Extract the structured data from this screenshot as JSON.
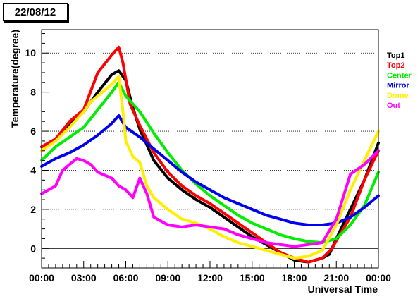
{
  "chart_data": {
    "type": "line",
    "title": "22/08/12",
    "xlabel": "Universal Time",
    "ylabel": "Temperature(degree)",
    "xlim": [
      0,
      24
    ],
    "ylim": [
      -1,
      11.2
    ],
    "x_ticks": [
      {
        "value": 0,
        "label": "00:00"
      },
      {
        "value": 3,
        "label": "03:00"
      },
      {
        "value": 6,
        "label": "06:00"
      },
      {
        "value": 9,
        "label": "09:00"
      },
      {
        "value": 12,
        "label": "12:00"
      },
      {
        "value": 15,
        "label": "15:00"
      },
      {
        "value": 18,
        "label": "18:00"
      },
      {
        "value": 21,
        "label": "21:00"
      },
      {
        "value": 24,
        "label": "00:00"
      }
    ],
    "y_ticks": [
      0,
      2,
      4,
      6,
      8,
      10
    ],
    "grid": "dotted horizontal at y ticks",
    "legend_position": "right",
    "series": [
      {
        "name": "Top1",
        "color": "#000000",
        "points": [
          [
            0,
            5.2
          ],
          [
            1,
            5.6
          ],
          [
            2,
            6.4
          ],
          [
            3,
            7.0
          ],
          [
            4,
            8.0
          ],
          [
            5,
            8.9
          ],
          [
            5.5,
            9.1
          ],
          [
            6,
            8.6
          ],
          [
            6.5,
            7.2
          ],
          [
            7,
            6.1
          ],
          [
            8,
            4.5
          ],
          [
            9,
            3.6
          ],
          [
            10,
            3.0
          ],
          [
            11,
            2.5
          ],
          [
            12,
            2.1
          ],
          [
            13,
            1.6
          ],
          [
            14,
            1.1
          ],
          [
            15,
            0.6
          ],
          [
            16,
            0.2
          ],
          [
            17,
            -0.2
          ],
          [
            18,
            -0.6
          ],
          [
            19,
            -0.7
          ],
          [
            20,
            -0.5
          ],
          [
            20.5,
            -0.3
          ],
          [
            21,
            0.5
          ],
          [
            22,
            2.0
          ],
          [
            23,
            3.5
          ],
          [
            24,
            5.4
          ]
        ]
      },
      {
        "name": "Top2",
        "color": "#ff0000",
        "points": [
          [
            0,
            5.2
          ],
          [
            1,
            5.6
          ],
          [
            2,
            6.5
          ],
          [
            3,
            7.1
          ],
          [
            4,
            9.0
          ],
          [
            5,
            9.9
          ],
          [
            5.5,
            10.3
          ],
          [
            5.8,
            9.5
          ],
          [
            6.3,
            7.4
          ],
          [
            7,
            6.3
          ],
          [
            8,
            4.9
          ],
          [
            9,
            3.9
          ],
          [
            10,
            3.2
          ],
          [
            11,
            2.7
          ],
          [
            12,
            2.3
          ],
          [
            13,
            1.8
          ],
          [
            14,
            1.3
          ],
          [
            15,
            0.8
          ],
          [
            16,
            0.3
          ],
          [
            17,
            -0.2
          ],
          [
            18,
            -0.5
          ],
          [
            19,
            -0.7
          ],
          [
            20,
            -0.5
          ],
          [
            20.7,
            0.0
          ],
          [
            21,
            0.4
          ],
          [
            22,
            1.6
          ],
          [
            23,
            3.5
          ],
          [
            24,
            5.0
          ]
        ]
      },
      {
        "name": "Center",
        "color": "#00ee00",
        "points": [
          [
            0,
            4.5
          ],
          [
            1,
            5.2
          ],
          [
            2,
            5.7
          ],
          [
            3,
            6.2
          ],
          [
            4,
            7.1
          ],
          [
            5,
            8.0
          ],
          [
            5.5,
            8.5
          ],
          [
            6,
            7.8
          ],
          [
            7,
            7.0
          ],
          [
            8,
            5.9
          ],
          [
            9,
            4.9
          ],
          [
            10,
            4.0
          ],
          [
            11,
            3.3
          ],
          [
            12,
            2.7
          ],
          [
            13,
            2.2
          ],
          [
            14,
            1.7
          ],
          [
            15,
            1.3
          ],
          [
            16,
            1.0
          ],
          [
            17,
            0.7
          ],
          [
            18,
            0.5
          ],
          [
            19,
            0.35
          ],
          [
            20,
            0.3
          ],
          [
            21,
            0.5
          ],
          [
            22,
            1.2
          ],
          [
            23,
            2.2
          ],
          [
            24,
            3.9
          ]
        ]
      },
      {
        "name": "Mirror",
        "color": "#0000ee",
        "points": [
          [
            0,
            4.2
          ],
          [
            1,
            4.6
          ],
          [
            2,
            4.9
          ],
          [
            3,
            5.3
          ],
          [
            4,
            5.8
          ],
          [
            5,
            6.4
          ],
          [
            5.5,
            6.8
          ],
          [
            6,
            6.2
          ],
          [
            7,
            5.7
          ],
          [
            8,
            5.1
          ],
          [
            9,
            4.5
          ],
          [
            10,
            3.9
          ],
          [
            11,
            3.4
          ],
          [
            12,
            3.0
          ],
          [
            13,
            2.6
          ],
          [
            14,
            2.3
          ],
          [
            15,
            2.0
          ],
          [
            16,
            1.7
          ],
          [
            17,
            1.5
          ],
          [
            18,
            1.3
          ],
          [
            19,
            1.2
          ],
          [
            20,
            1.2
          ],
          [
            21,
            1.3
          ],
          [
            22,
            1.6
          ],
          [
            23,
            2.1
          ],
          [
            24,
            2.7
          ]
        ]
      },
      {
        "name": "Dome",
        "color": "#ffee00",
        "points": [
          [
            0,
            5.0
          ],
          [
            1,
            5.5
          ],
          [
            2,
            6.2
          ],
          [
            3,
            7.0
          ],
          [
            3.5,
            7.5
          ],
          [
            4,
            7.8
          ],
          [
            5,
            8.4
          ],
          [
            5.5,
            8.8
          ],
          [
            5.8,
            7.0
          ],
          [
            6,
            5.5
          ],
          [
            6.5,
            4.7
          ],
          [
            7,
            4.4
          ],
          [
            7.5,
            3.2
          ],
          [
            8,
            2.6
          ],
          [
            9,
            2.0
          ],
          [
            10,
            1.5
          ],
          [
            11,
            1.3
          ],
          [
            12,
            1.0
          ],
          [
            13,
            0.6
          ],
          [
            14,
            0.3
          ],
          [
            15,
            0.1
          ],
          [
            16,
            -0.1
          ],
          [
            17,
            -0.3
          ],
          [
            18,
            -0.5
          ],
          [
            19,
            -0.4
          ],
          [
            20,
            -0.1
          ],
          [
            21,
            1.2
          ],
          [
            22,
            3.0
          ],
          [
            23,
            4.5
          ],
          [
            24,
            6.0
          ]
        ]
      },
      {
        "name": "Out",
        "color": "#ff00ff",
        "points": [
          [
            0,
            2.8
          ],
          [
            1,
            3.2
          ],
          [
            1.5,
            4.0
          ],
          [
            2,
            4.3
          ],
          [
            2.5,
            4.6
          ],
          [
            3,
            4.5
          ],
          [
            3.5,
            4.3
          ],
          [
            4,
            3.9
          ],
          [
            5,
            3.6
          ],
          [
            5.5,
            3.2
          ],
          [
            6,
            3.0
          ],
          [
            6.5,
            2.6
          ],
          [
            7,
            3.6
          ],
          [
            7.5,
            2.8
          ],
          [
            8,
            1.6
          ],
          [
            9,
            1.2
          ],
          [
            10,
            1.1
          ],
          [
            11,
            1.2
          ],
          [
            12,
            1.1
          ],
          [
            13,
            1.0
          ],
          [
            14,
            0.7
          ],
          [
            15,
            0.5
          ],
          [
            16,
            0.3
          ],
          [
            17,
            0.2
          ],
          [
            18,
            0.1
          ],
          [
            19,
            0.2
          ],
          [
            20,
            0.3
          ],
          [
            21,
            1.5
          ],
          [
            22,
            3.8
          ],
          [
            23,
            4.3
          ],
          [
            24,
            5.0
          ]
        ]
      }
    ]
  }
}
